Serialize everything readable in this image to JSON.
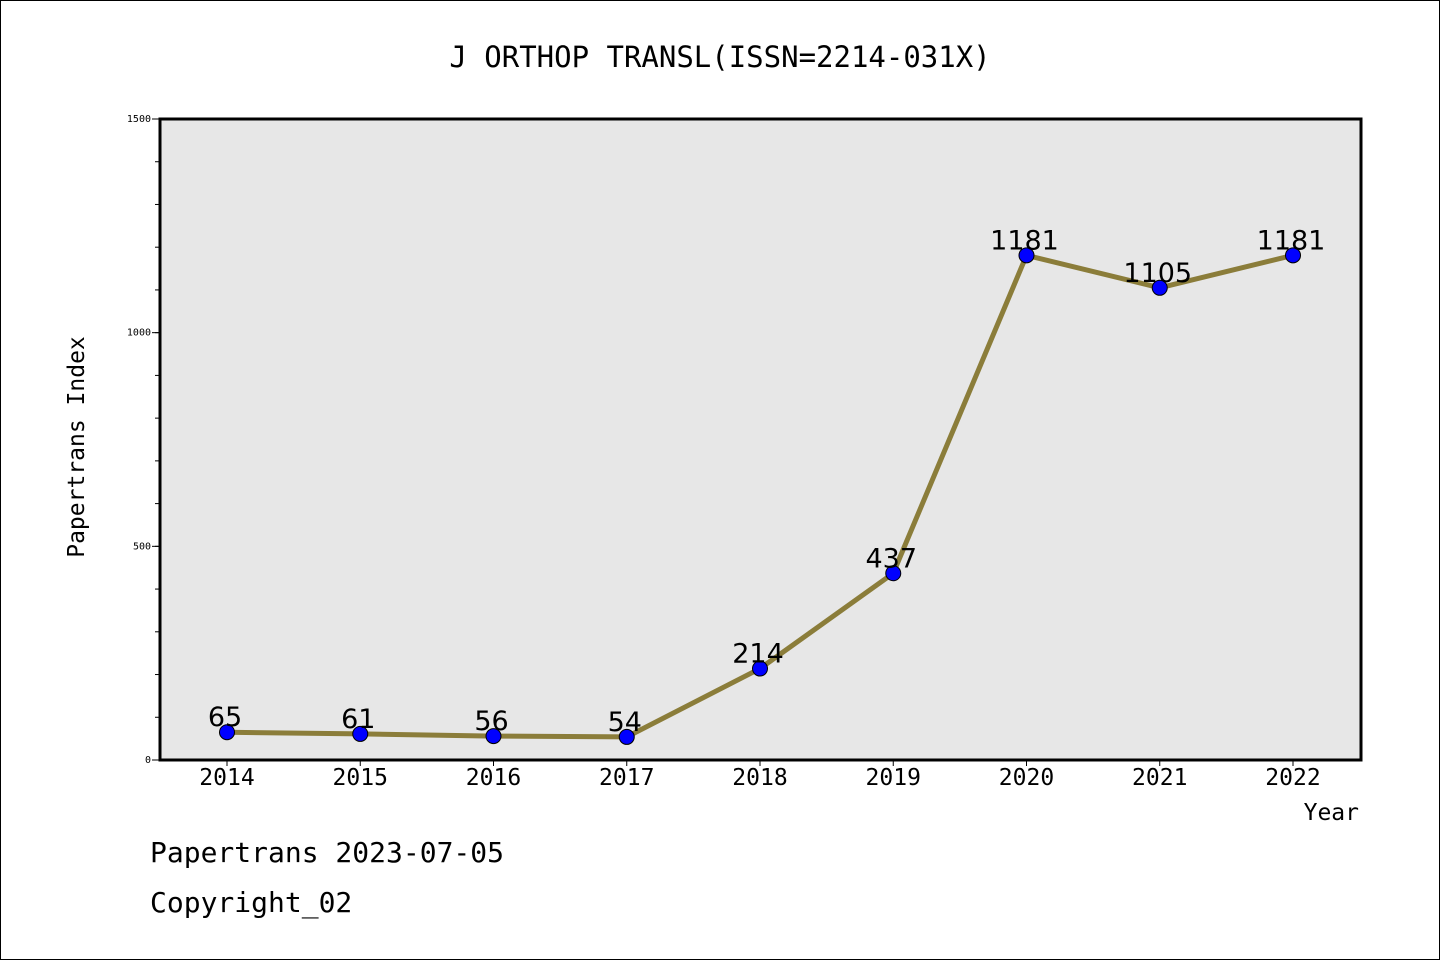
{
  "chart_data": {
    "type": "line",
    "title": "J ORTHOP TRANSL(ISSN=2214-031X)",
    "xlabel": "Year",
    "ylabel": "Papertrans Index",
    "categories": [
      "2014",
      "2015",
      "2016",
      "2017",
      "2018",
      "2019",
      "2020",
      "2021",
      "2022"
    ],
    "values": [
      65,
      61,
      56,
      54,
      214,
      437,
      1181,
      1105,
      1181
    ],
    "data_labels": [
      "65",
      "61",
      "56",
      "54",
      "214",
      "437",
      "1181",
      "1105",
      "1181"
    ],
    "ylim": [
      0,
      1500
    ],
    "yticks": [
      0,
      500,
      1000,
      1500
    ],
    "ytick_labels": [
      "0",
      "500",
      "1000",
      "1500"
    ],
    "grid": false,
    "colors": {
      "line": "#8b7d3a",
      "marker": "#0000ff",
      "plot_background": "#e7e7e7"
    }
  },
  "footer": {
    "date_text": "Papertrans 2023-07-05",
    "copyright_text": "Copyright_02"
  }
}
